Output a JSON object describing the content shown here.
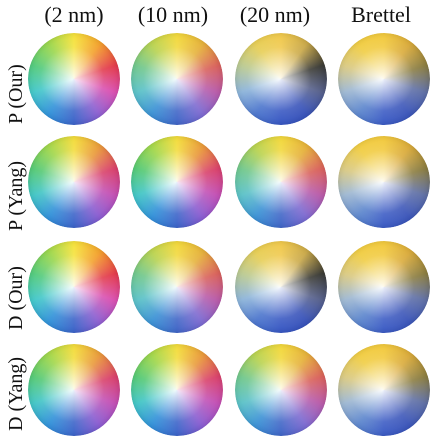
{
  "columns": [
    "(2 nm)",
    "(10 nm)",
    "(20 nm)",
    "Brettel"
  ],
  "rows": [
    "P (Our)",
    "P (Yang)",
    "D (Our)",
    "D (Yang)"
  ],
  "palettes": {
    "normal": [
      "#f5e23a",
      "#f3a12c",
      "#e23a4a",
      "#d94fb0",
      "#8e5fd0",
      "#3a62c8",
      "#2f90d8",
      "#3fc6c8",
      "#4fc97a",
      "#9ad64a",
      "#f5e23a"
    ],
    "mild": [
      "#f2d83a",
      "#e5b13a",
      "#d8605a",
      "#b85aa8",
      "#7e6ad0",
      "#3e64c6",
      "#3990d4",
      "#58c0c6",
      "#6ec68a",
      "#b8d24e",
      "#f2d83a"
    ],
    "strong": [
      "#f0c84a",
      "#c9a848",
      "#3a3a34",
      "#555f8a",
      "#3852b8",
      "#3656c2",
      "#4a74cc",
      "#8ab2d8",
      "#b8c890",
      "#e6cd52",
      "#f0c84a"
    ],
    "brettel": [
      "#f2c93c",
      "#d9aa3a",
      "#8a7c40",
      "#5f6fa4",
      "#3b55b8",
      "#3a5ac4",
      "#5a84cc",
      "#9cb6d0",
      "#d8c880",
      "#f0cc40",
      "#f2c93c"
    ],
    "yang": [
      "#f3dc3a",
      "#e99a3a",
      "#d8406a",
      "#c24fb4",
      "#8a5cd0",
      "#3a62c8",
      "#2f8fd8",
      "#3ec4c4",
      "#52c872",
      "#a0d648",
      "#f3dc3a"
    ]
  },
  "wheels": [
    [
      "normal",
      "mild",
      "strong",
      "brettel"
    ],
    [
      "yang",
      "yang",
      "mild",
      "brettel"
    ],
    [
      "normal",
      "mild",
      "strong",
      "brettel"
    ],
    [
      "yang",
      "yang",
      "mild",
      "brettel"
    ]
  ]
}
